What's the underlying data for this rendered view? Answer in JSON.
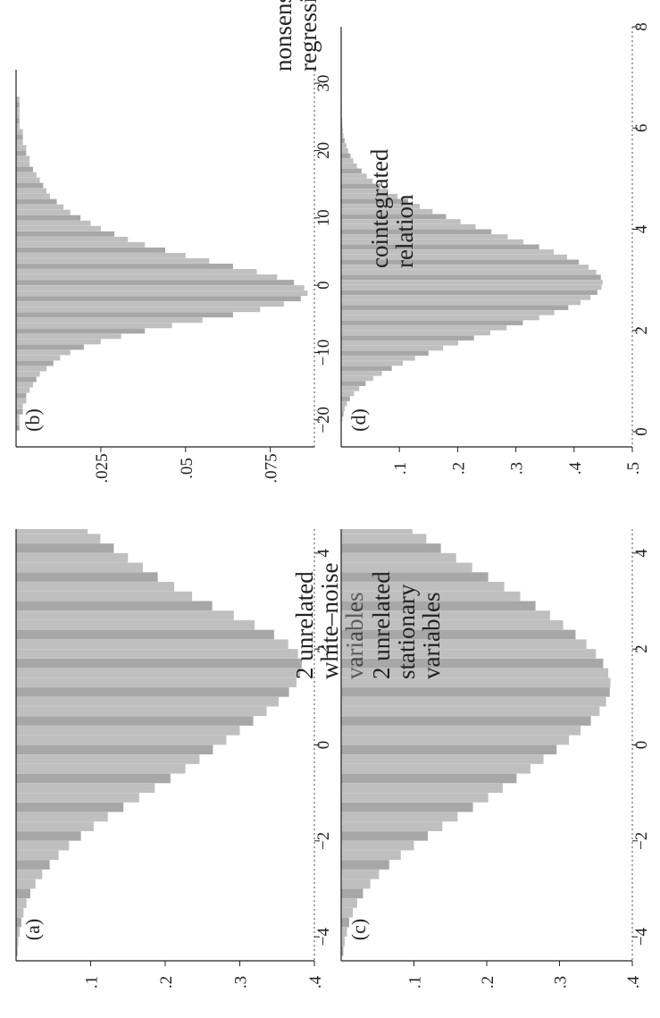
{
  "figure": {
    "rotation": "90° counter-clockwise (landscape figure shown in portrait)",
    "colors": {
      "ink": "#222222",
      "bar_fill": "#8a8a8a",
      "bar_fill_dark": "#5e5e5e",
      "background": "#ffffff"
    }
  },
  "chart_data": [
    {
      "panel": "a",
      "tag": "(a)",
      "type": "bar",
      "title": "",
      "annotation": [
        "2 unrelated",
        "white–noise",
        "variables"
      ],
      "xlabel": "",
      "ylabel": "",
      "xlim": [
        -4.5,
        4.5
      ],
      "ylim": [
        0,
        0.4
      ],
      "x_ticks": [
        "−4",
        "−2",
        "0",
        "2",
        "4"
      ],
      "x_tick_values": [
        -4,
        -2,
        0,
        2,
        4
      ],
      "y_ticks": [
        ".1",
        ".2",
        ".3",
        ".4"
      ],
      "y_tick_values": [
        0.1,
        0.2,
        0.3,
        0.4
      ],
      "bins": {
        "start": -4.4,
        "width": 0.2
      },
      "values": [
        0.002,
        0.003,
        0.005,
        0.007,
        0.01,
        0.014,
        0.019,
        0.026,
        0.035,
        0.045,
        0.057,
        0.071,
        0.087,
        0.104,
        0.123,
        0.144,
        0.165,
        0.186,
        0.207,
        0.227,
        0.246,
        0.264,
        0.282,
        0.3,
        0.318,
        0.336,
        0.352,
        0.366,
        0.376,
        0.381,
        0.383,
        0.378,
        0.365,
        0.346,
        0.32,
        0.292,
        0.263,
        0.236,
        0.212,
        0.19,
        0.17,
        0.15,
        0.131,
        0.113,
        0.096,
        0.08,
        0.066,
        0.053,
        0.042,
        0.032,
        0.024,
        0.017,
        0.012,
        0.008,
        0.005,
        0.003,
        0.002,
        0.001,
        0.001,
        0.001,
        0.001,
        0.0,
        0.0,
        0.0
      ]
    },
    {
      "panel": "b",
      "tag": "(b)",
      "type": "bar",
      "title": "",
      "annotation": [
        "nonsense",
        "regression"
      ],
      "xlabel": "",
      "ylabel": "",
      "xlim": [
        -24,
        32
      ],
      "ylim": [
        0,
        0.088
      ],
      "x_ticks": [
        "−20",
        "−10",
        "0",
        "10",
        "20",
        "30"
      ],
      "x_tick_values": [
        -20,
        -10,
        0,
        10,
        20,
        30
      ],
      "y_ticks": [
        ".025",
        ".05",
        ".075"
      ],
      "y_tick_values": [
        0.025,
        0.05,
        0.075
      ],
      "bins": {
        "start": -24,
        "width": 0.8
      },
      "values": [
        0.0,
        0.0,
        0.0,
        0.001,
        0.001,
        0.001,
        0.002,
        0.002,
        0.003,
        0.003,
        0.004,
        0.005,
        0.006,
        0.007,
        0.009,
        0.011,
        0.013,
        0.016,
        0.02,
        0.025,
        0.031,
        0.038,
        0.046,
        0.055,
        0.064,
        0.072,
        0.079,
        0.084,
        0.086,
        0.085,
        0.082,
        0.077,
        0.071,
        0.064,
        0.057,
        0.05,
        0.044,
        0.038,
        0.033,
        0.029,
        0.025,
        0.022,
        0.019,
        0.016,
        0.014,
        0.012,
        0.01,
        0.009,
        0.008,
        0.007,
        0.006,
        0.005,
        0.004,
        0.004,
        0.003,
        0.003,
        0.002,
        0.002,
        0.002,
        0.001,
        0.001,
        0.001,
        0.001,
        0.001,
        0.001,
        0.0,
        0.0,
        0.0,
        0.0,
        0.0
      ]
    },
    {
      "panel": "c",
      "tag": "(c)",
      "type": "bar",
      "title": "",
      "annotation": [
        "2 unrelated",
        "stationary",
        "variables"
      ],
      "xlabel": "",
      "ylabel": "",
      "xlim": [
        -4.5,
        4.5
      ],
      "ylim": [
        0,
        0.4
      ],
      "x_ticks": [
        "−4",
        "−2",
        "0",
        "2",
        "4"
      ],
      "x_tick_values": [
        -4,
        -2,
        0,
        2,
        4
      ],
      "y_ticks": [
        ".1",
        ".2",
        ".3",
        ".4"
      ],
      "y_tick_values": [
        0.1,
        0.2,
        0.3,
        0.4
      ],
      "bins": {
        "start": -4.4,
        "width": 0.2
      },
      "values": [
        0.003,
        0.005,
        0.008,
        0.011,
        0.016,
        0.022,
        0.03,
        0.04,
        0.052,
        0.066,
        0.082,
        0.1,
        0.119,
        0.139,
        0.16,
        0.181,
        0.202,
        0.222,
        0.241,
        0.26,
        0.278,
        0.296,
        0.313,
        0.329,
        0.343,
        0.355,
        0.364,
        0.369,
        0.37,
        0.367,
        0.36,
        0.35,
        0.337,
        0.322,
        0.305,
        0.287,
        0.267,
        0.246,
        0.224,
        0.202,
        0.18,
        0.158,
        0.137,
        0.117,
        0.098,
        0.081,
        0.066,
        0.052,
        0.041,
        0.031,
        0.023,
        0.017,
        0.012,
        0.008,
        0.006,
        0.004,
        0.003,
        0.002,
        0.001,
        0.001,
        0.001,
        0.0,
        0.0,
        0.0
      ]
    },
    {
      "panel": "d",
      "tag": "(d)",
      "type": "bar",
      "title": "",
      "annotation": [
        "cointegrated",
        "relation"
      ],
      "xlabel": "",
      "ylabel": "",
      "xlim": [
        -0.3,
        8
      ],
      "ylim": [
        0,
        0.5
      ],
      "x_ticks": [
        "0",
        "2",
        "4",
        "6",
        "8"
      ],
      "x_tick_values": [
        0,
        2,
        4,
        6,
        8
      ],
      "y_ticks": [
        ".1",
        ".2",
        ".3",
        ".4",
        ".5"
      ],
      "y_tick_values": [
        0.1,
        0.2,
        0.3,
        0.4,
        0.5
      ],
      "bins": {
        "start": 0,
        "width": 0.1
      },
      "values": [
        0.0,
        0.001,
        0.002,
        0.004,
        0.006,
        0.01,
        0.015,
        0.022,
        0.031,
        0.042,
        0.055,
        0.07,
        0.087,
        0.106,
        0.127,
        0.15,
        0.175,
        0.201,
        0.228,
        0.256,
        0.284,
        0.312,
        0.34,
        0.366,
        0.39,
        0.411,
        0.428,
        0.44,
        0.447,
        0.449,
        0.446,
        0.438,
        0.425,
        0.408,
        0.388,
        0.365,
        0.34,
        0.313,
        0.286,
        0.258,
        0.231,
        0.205,
        0.18,
        0.157,
        0.135,
        0.115,
        0.097,
        0.081,
        0.067,
        0.054,
        0.044,
        0.035,
        0.027,
        0.021,
        0.016,
        0.012,
        0.009,
        0.006,
        0.004,
        0.003,
        0.002,
        0.002,
        0.001,
        0.001,
        0.001,
        0.0,
        0.0,
        0.0
      ]
    }
  ]
}
